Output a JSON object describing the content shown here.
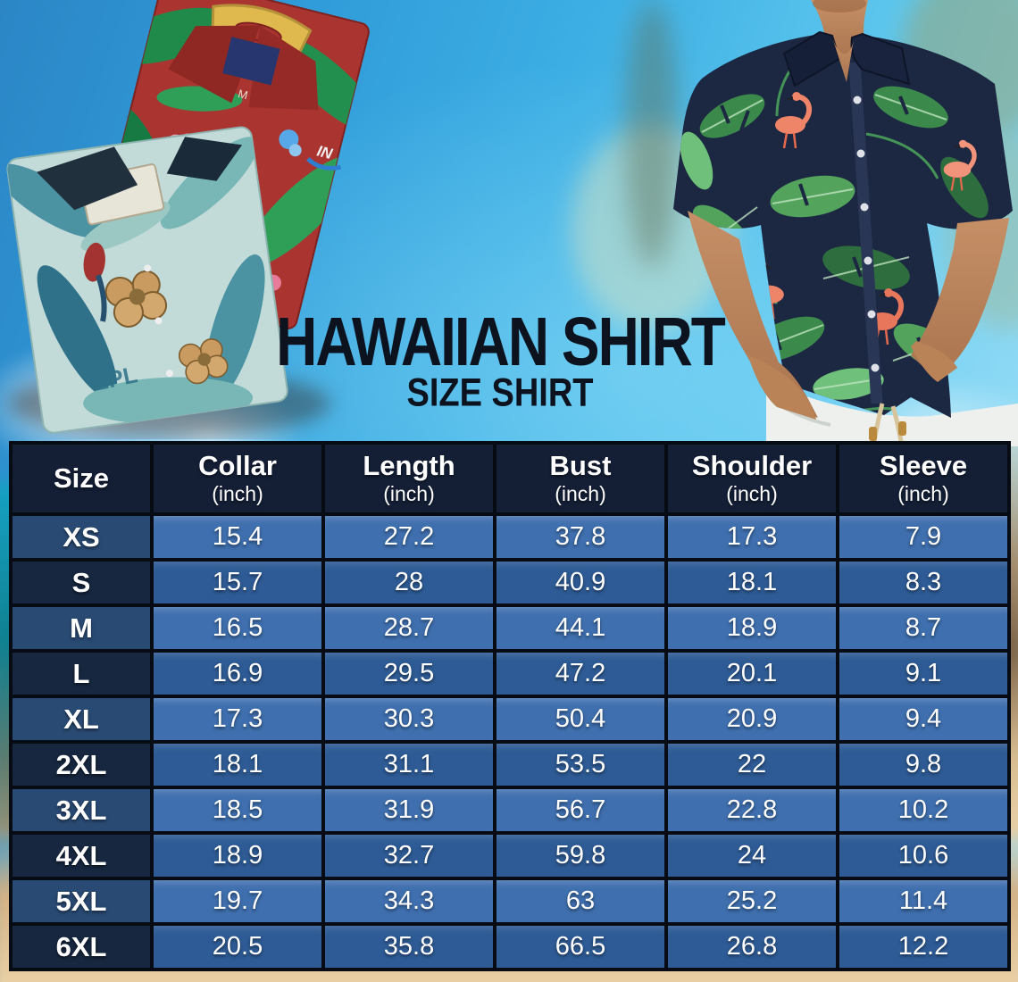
{
  "title": {
    "main": "HAWAIIAN SHIRT",
    "subtitle": "SIZE SHIRT"
  },
  "table": {
    "columns": [
      {
        "label": "Size",
        "unit": ""
      },
      {
        "label": "Collar",
        "unit": "(inch)"
      },
      {
        "label": "Length",
        "unit": "(inch)"
      },
      {
        "label": "Bust",
        "unit": "(inch)"
      },
      {
        "label": "Shoulder",
        "unit": "(inch)"
      },
      {
        "label": "Sleeve",
        "unit": "(inch)"
      }
    ],
    "rows": [
      {
        "size": "XS",
        "values": [
          "15.4",
          "27.2",
          "37.8",
          "17.3",
          "7.9"
        ]
      },
      {
        "size": "S",
        "values": [
          "15.7",
          "28",
          "40.9",
          "18.1",
          "8.3"
        ]
      },
      {
        "size": "M",
        "values": [
          "16.5",
          "28.7",
          "44.1",
          "18.9",
          "8.7"
        ]
      },
      {
        "size": "L",
        "values": [
          "16.9",
          "29.5",
          "47.2",
          "20.1",
          "9.1"
        ]
      },
      {
        "size": "XL",
        "values": [
          "17.3",
          "30.3",
          "50.4",
          "20.9",
          "9.4"
        ]
      },
      {
        "size": "2XL",
        "values": [
          "18.1",
          "31.1",
          "53.5",
          "22",
          "9.8"
        ]
      },
      {
        "size": "3XL",
        "values": [
          "18.5",
          "31.9",
          "56.7",
          "22.8",
          "10.2"
        ]
      },
      {
        "size": "4XL",
        "values": [
          "18.9",
          "32.7",
          "59.8",
          "24",
          "10.6"
        ]
      },
      {
        "size": "5XL",
        "values": [
          "19.7",
          "34.3",
          "63",
          "25.2",
          "11.4"
        ]
      },
      {
        "size": "6XL",
        "values": [
          "20.5",
          "35.8",
          "66.5",
          "26.8",
          "12.2"
        ]
      }
    ]
  },
  "decor": {
    "teal_shirt_print_text": "EPL",
    "red_shirt_tag_text": "M",
    "red_shirt_logo_text": "IN"
  },
  "colors": {
    "table_header_bg": "#141f36",
    "row_light_bg": "#3f6fae",
    "row_dark_bg": "#2e5b95",
    "size_light_bg": "#294a73",
    "size_dark_bg": "#16273f",
    "table_grid": "#070b14",
    "table_text": "#ffffff",
    "title_color": "#0c131f"
  }
}
